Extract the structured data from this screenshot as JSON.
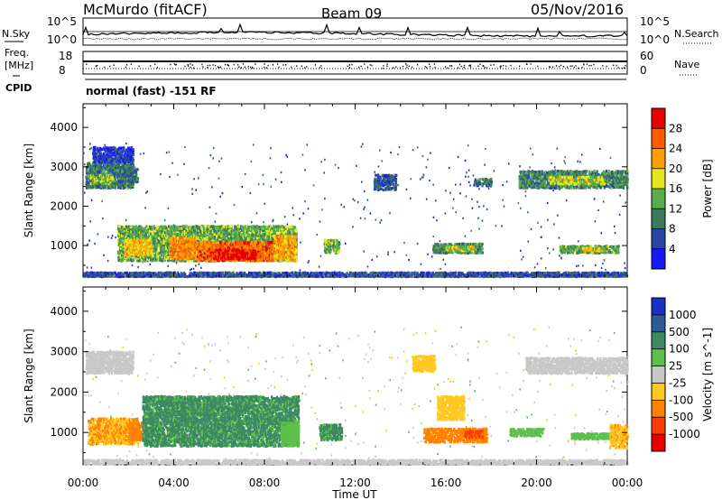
{
  "header": {
    "station": "McMurdo (fitACF)",
    "beam": "Beam 09",
    "date": "05/Nov/2016",
    "cpid_text": "normal (fast) -151 RF"
  },
  "noise_panel": {
    "left_label": "N.Sky",
    "right_label": "N.Search",
    "left_ticks": [
      "10^5",
      "10^0"
    ],
    "right_ticks": [
      "10^5",
      "10^0"
    ]
  },
  "freq_panel": {
    "left_label_line1": "Freq.",
    "left_label_line2": "[MHz]",
    "right_label": "Nave",
    "left_ticks": [
      "18",
      "8"
    ],
    "right_ticks": [
      "60",
      "0"
    ],
    "cpid_label": "CPID"
  },
  "time_axis": {
    "label": "Time UT",
    "ticks": [
      "00:00",
      "04:00",
      "08:00",
      "12:00",
      "16:00",
      "20:00",
      "00:00"
    ]
  },
  "chart_data": [
    {
      "type": "heatmap",
      "title": "Power",
      "xlabel": "Time UT",
      "ylabel": "Slant Range [km]",
      "xlim": [
        0,
        24
      ],
      "ylim": [
        200,
        4600
      ],
      "yticks": [
        "1000",
        "2000",
        "3000",
        "4000"
      ],
      "colorbar": {
        "label": "Power [dB]",
        "ticks": [
          "4",
          "8",
          "12",
          "16",
          "20",
          "24",
          "28"
        ],
        "range": [
          0,
          30
        ],
        "colors": [
          "#1818ff",
          "#2846a8",
          "#3e7a5a",
          "#58ae4c",
          "#e6e61e",
          "#ff9e00",
          "#ff5a00",
          "#e60000"
        ]
      },
      "regions": [
        {
          "t0": 0.0,
          "t1": 24.0,
          "r0": 200,
          "r1": 320,
          "v": 6
        },
        {
          "t0": 0.1,
          "t1": 2.2,
          "r0": 2450,
          "r1": 3100,
          "v": 9
        },
        {
          "t0": 0.3,
          "t1": 1.3,
          "r0": 2550,
          "r1": 2800,
          "v": 14
        },
        {
          "t0": 0.4,
          "t1": 2.2,
          "r0": 3100,
          "r1": 3500,
          "v": 5
        },
        {
          "t0": 1.5,
          "t1": 2.4,
          "r0": 2600,
          "r1": 3000,
          "v": 8
        },
        {
          "t0": 1.5,
          "t1": 9.4,
          "r0": 600,
          "r1": 1500,
          "v": 13
        },
        {
          "t0": 1.8,
          "t1": 3.0,
          "r0": 750,
          "r1": 1150,
          "v": 19
        },
        {
          "t0": 3.8,
          "t1": 5.0,
          "r0": 650,
          "r1": 1200,
          "v": 22
        },
        {
          "t0": 5.0,
          "t1": 8.4,
          "r0": 600,
          "r1": 1100,
          "v": 24
        },
        {
          "t0": 5.6,
          "t1": 7.6,
          "r0": 650,
          "r1": 900,
          "v": 28
        },
        {
          "t0": 8.4,
          "t1": 9.4,
          "r0": 600,
          "r1": 1250,
          "v": 20
        },
        {
          "t0": 10.6,
          "t1": 11.3,
          "r0": 800,
          "r1": 1150,
          "v": 14
        },
        {
          "t0": 15.4,
          "t1": 17.6,
          "r0": 800,
          "r1": 1050,
          "v": 11
        },
        {
          "t0": 16.0,
          "t1": 17.2,
          "r0": 850,
          "r1": 980,
          "v": 16
        },
        {
          "t0": 12.8,
          "t1": 13.8,
          "r0": 2400,
          "r1": 2800,
          "v": 6
        },
        {
          "t0": 17.2,
          "t1": 18.0,
          "r0": 2500,
          "r1": 2700,
          "v": 8
        },
        {
          "t0": 19.2,
          "t1": 24.0,
          "r0": 2450,
          "r1": 2900,
          "v": 10
        },
        {
          "t0": 20.5,
          "t1": 23.0,
          "r0": 2550,
          "r1": 2750,
          "v": 16
        },
        {
          "t0": 21.0,
          "t1": 23.6,
          "r0": 800,
          "r1": 1000,
          "v": 12
        },
        {
          "t0": 22.0,
          "t1": 23.0,
          "r0": 850,
          "r1": 950,
          "v": 18
        }
      ]
    },
    {
      "type": "heatmap",
      "title": "Velocity",
      "xlabel": "Time UT",
      "ylabel": "Slant Range [km]",
      "xlim": [
        0,
        24
      ],
      "ylim": [
        200,
        4600
      ],
      "yticks": [
        "1000",
        "2000",
        "3000",
        "4000"
      ],
      "colorbar": {
        "label": "Velocity [m s^-1]",
        "ticks": [
          "1000",
          "500",
          "100",
          "25",
          "-25",
          "-100",
          "-500",
          "-1000"
        ],
        "colors": [
          "#1830c8",
          "#2e5a98",
          "#3c8a60",
          "#5cc04a",
          "#c8c8c8",
          "#ffc81e",
          "#ff8200",
          "#ff3c00",
          "#e60000"
        ]
      },
      "regions": [
        {
          "t0": 0.0,
          "t1": 24.0,
          "r0": 200,
          "r1": 320,
          "v": 0
        },
        {
          "t0": 0.1,
          "t1": 2.2,
          "r0": 2450,
          "r1": 3000,
          "v": 0
        },
        {
          "t0": 0.2,
          "t1": 2.4,
          "r0": 700,
          "r1": 1350,
          "v": -100
        },
        {
          "t0": 2.0,
          "t1": 2.8,
          "r0": 800,
          "r1": 1250,
          "v": -300
        },
        {
          "t0": 2.6,
          "t1": 9.5,
          "r0": 650,
          "r1": 1900,
          "v": 120
        },
        {
          "t0": 8.7,
          "t1": 9.5,
          "r0": 650,
          "r1": 1250,
          "v": 40
        },
        {
          "t0": 10.4,
          "t1": 11.4,
          "r0": 800,
          "r1": 1200,
          "v": 120
        },
        {
          "t0": 15.0,
          "t1": 17.8,
          "r0": 750,
          "r1": 1100,
          "v": -150
        },
        {
          "t0": 16.8,
          "t1": 17.6,
          "r0": 850,
          "r1": 1050,
          "v": -600
        },
        {
          "t0": 18.8,
          "t1": 20.3,
          "r0": 900,
          "r1": 1100,
          "v": 60
        },
        {
          "t0": 21.5,
          "t1": 23.4,
          "r0": 820,
          "r1": 980,
          "v": 60
        },
        {
          "t0": 19.5,
          "t1": 24.0,
          "r0": 2450,
          "r1": 2850,
          "v": 0
        },
        {
          "t0": 15.6,
          "t1": 16.8,
          "r0": 1300,
          "r1": 1900,
          "v": -60
        },
        {
          "t0": 23.2,
          "t1": 24.0,
          "r0": 600,
          "r1": 1200,
          "v": -90
        },
        {
          "t0": 14.5,
          "t1": 15.5,
          "r0": 2500,
          "r1": 2900,
          "v": -40
        }
      ]
    }
  ]
}
